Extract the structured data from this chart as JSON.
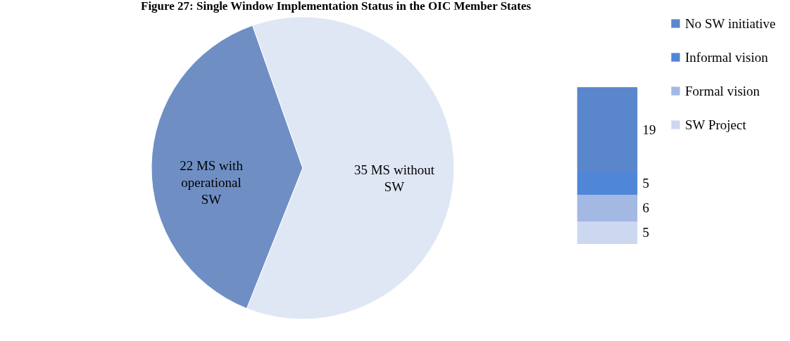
{
  "chart_data": [
    {
      "type": "pie",
      "title": "Figure 27: Single Window Implementation Status in the OIC Member States",
      "categories": [
        "22 MS with operational SW",
        "35 MS without SW"
      ],
      "values": [
        22,
        35
      ],
      "colors": [
        "#6f8fc4",
        "#dfe6f4"
      ],
      "legend": false
    },
    {
      "type": "bar",
      "stacked": true,
      "categories": [
        null
      ],
      "data_labels": true,
      "legend": "right",
      "tick_labels": false,
      "series": [
        {
          "name": "SW Project",
          "color": "#ccd8f0",
          "values": [
            5
          ]
        },
        {
          "name": "Formal vision",
          "color": "#a3b9e4",
          "values": [
            6
          ]
        },
        {
          "name": "Informal vision",
          "color": "#4f86d8",
          "values": [
            5
          ]
        },
        {
          "name": "No SW initiative",
          "color": "#5a86cc",
          "values": [
            19
          ]
        }
      ]
    }
  ]
}
